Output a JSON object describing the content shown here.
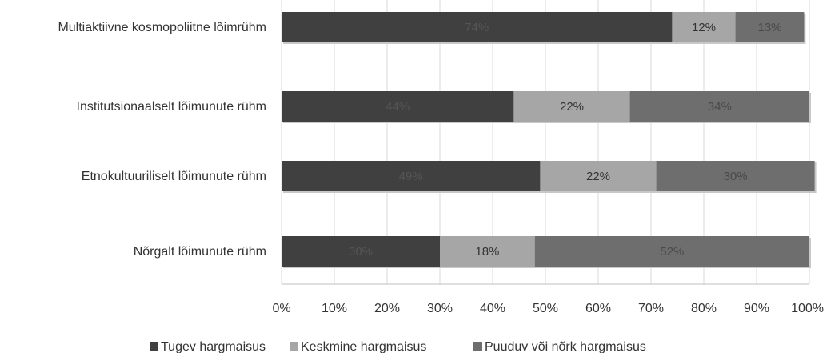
{
  "chart_data": {
    "type": "bar",
    "orientation": "horizontal",
    "stacked": "percent",
    "categories": [
      "Multiaktiivne kosmopoliitne lõimrühm",
      "Institutsionaalselt lõimunute rühm",
      "Etnokultuuriliselt lõimunute rühm",
      "Nõrgalt lõimunute rühm"
    ],
    "series": [
      {
        "name": "Tugev hargmaisus",
        "color": "#404040",
        "values": [
          74,
          44,
          49,
          30
        ],
        "labels": [
          "74%",
          "44%",
          "49%",
          "30%"
        ],
        "label_color": "#555555"
      },
      {
        "name": "Keskmine hargmaisus",
        "color": "#a6a6a6",
        "values": [
          12,
          22,
          22,
          18
        ],
        "labels": [
          "12%",
          "22%",
          "22%",
          "18%"
        ],
        "label_color": "#333333"
      },
      {
        "name": "Puuduv või nõrk hargmaisus",
        "color": "#6e6e6e",
        "values": [
          13,
          34,
          30,
          52
        ],
        "labels": [
          "13%",
          "34%",
          "30%",
          "52%"
        ],
        "label_color": "#4a4a4a"
      }
    ],
    "xlim": [
      0,
      100
    ],
    "x_ticks": [
      "0%",
      "10%",
      "20%",
      "30%",
      "40%",
      "50%",
      "60%",
      "70%",
      "80%",
      "90%",
      "100%"
    ],
    "grid": true,
    "legend_position": "bottom"
  }
}
